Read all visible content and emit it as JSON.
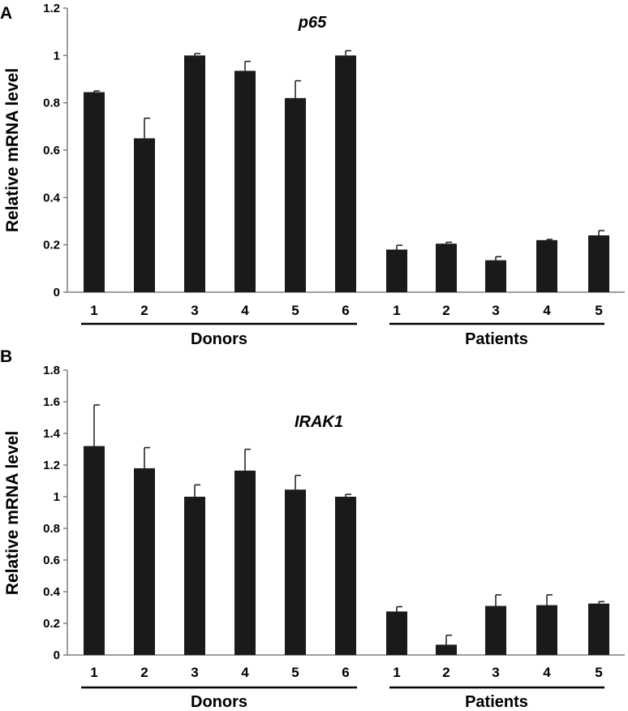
{
  "chart_data": [
    {
      "type": "bar",
      "panel": "A",
      "title": "p65",
      "ylabel": "Relative mRNA level",
      "xlabel": "",
      "ylim": [
        0,
        1.2
      ],
      "yticks": [
        "0",
        "0.2",
        "0.4",
        "0.6",
        "0.8",
        "1",
        "1.2"
      ],
      "yticks_values": [
        0,
        0.2,
        0.4,
        0.6,
        0.8,
        1,
        1.2
      ],
      "groups": [
        {
          "name": "Donors",
          "categories": [
            "1",
            "2",
            "3",
            "4",
            "5",
            "6"
          ]
        },
        {
          "name": "Patients",
          "categories": [
            "1",
            "2",
            "3",
            "4",
            "5"
          ]
        }
      ],
      "values": [
        0.845,
        0.65,
        1.0,
        0.935,
        0.82,
        1.0,
        0.18,
        0.205,
        0.135,
        0.22,
        0.24
      ],
      "errors": [
        0.005,
        0.085,
        0.008,
        0.04,
        0.073,
        0.02,
        0.018,
        0.006,
        0.015,
        0.003,
        0.02
      ],
      "color": "#1a1a1a",
      "grid": false,
      "legend": "none"
    },
    {
      "type": "bar",
      "panel": "B",
      "title": "IRAK1",
      "ylabel": "Relative mRNA level",
      "xlabel": "",
      "ylim": [
        0,
        1.8
      ],
      "yticks": [
        "0",
        "0.2",
        "0.4",
        "0.6",
        "0.8",
        "1",
        "1.2",
        "1.4",
        "1.6",
        "1.8"
      ],
      "yticks_values": [
        0,
        0.2,
        0.4,
        0.6,
        0.8,
        1,
        1.2,
        1.4,
        1.6,
        1.8
      ],
      "groups": [
        {
          "name": "Donors",
          "categories": [
            "1",
            "2",
            "3",
            "4",
            "5",
            "6"
          ]
        },
        {
          "name": "Patients",
          "categories": [
            "1",
            "2",
            "3",
            "4",
            "5"
          ]
        }
      ],
      "values": [
        1.32,
        1.18,
        1.0,
        1.165,
        1.045,
        1.0,
        0.275,
        0.065,
        0.31,
        0.315,
        0.325
      ],
      "errors": [
        0.26,
        0.13,
        0.075,
        0.135,
        0.09,
        0.015,
        0.03,
        0.06,
        0.07,
        0.065,
        0.012
      ],
      "color": "#1a1a1a",
      "grid": false,
      "legend": "none"
    }
  ]
}
